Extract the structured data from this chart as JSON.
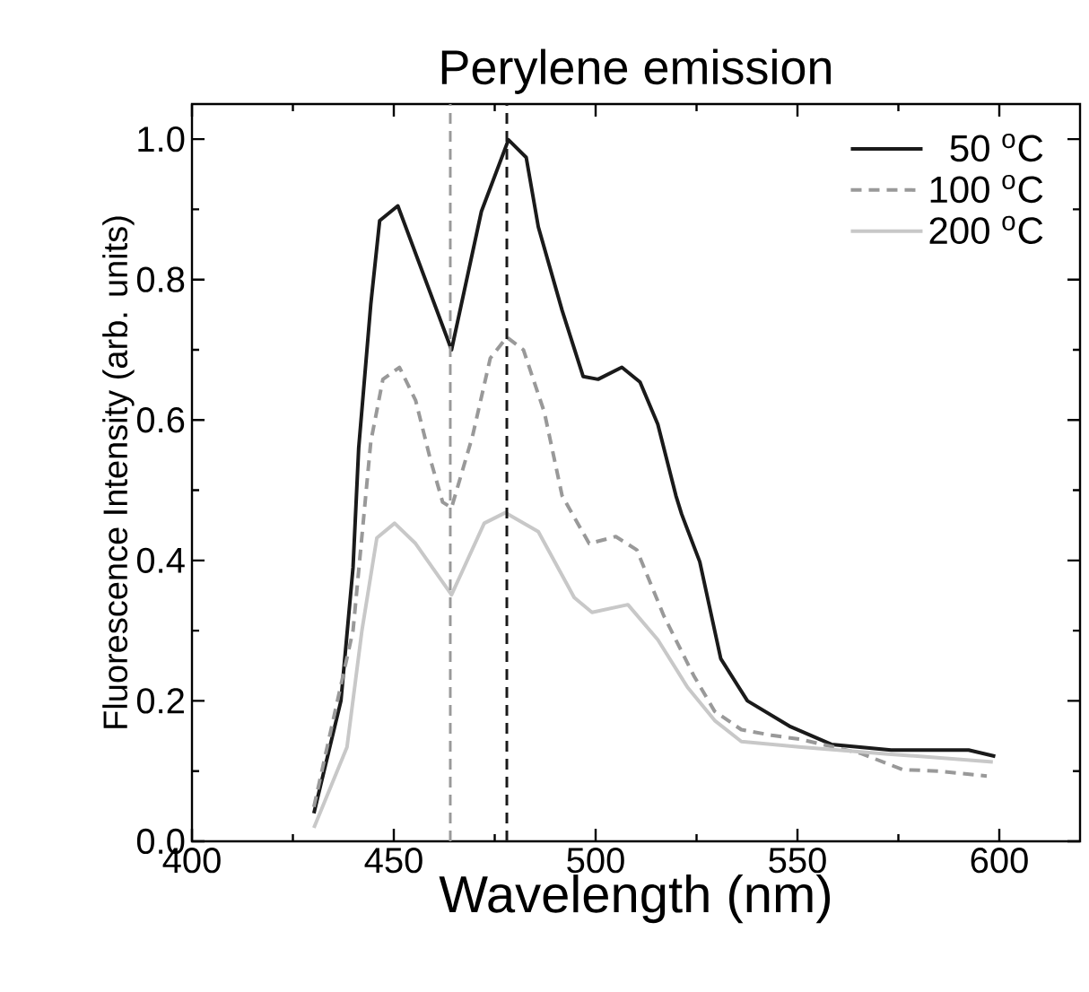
{
  "chart_data": {
    "type": "line",
    "title": "Perylene emission",
    "xlabel": "Wavelength (nm)",
    "ylabel": "Fluorescence Intensity (arb. units)",
    "xlim": [
      400,
      620
    ],
    "ylim": [
      0,
      1.05
    ],
    "xticks": [
      400,
      {
        "value": 425,
        "label": null
      },
      450,
      {
        "value": 475,
        "label": null
      },
      500,
      {
        "value": 525,
        "label": null
      },
      550,
      {
        "value": 575,
        "label": null
      },
      600
    ],
    "yticks": [
      {
        "value": 0,
        "label": "0.0"
      },
      {
        "value": 0.1,
        "label": null
      },
      {
        "value": 0.2,
        "label": "0.2"
      },
      {
        "value": 0.3,
        "label": null
      },
      {
        "value": 0.4,
        "label": "0.4"
      },
      {
        "value": 0.5,
        "label": null
      },
      {
        "value": 0.6,
        "label": "0.6"
      },
      {
        "value": 0.7,
        "label": null
      },
      {
        "value": 0.8,
        "label": "0.8"
      },
      {
        "value": 0.9,
        "label": null
      },
      {
        "value": 1.0,
        "label": "1.0"
      }
    ],
    "legend": "top right",
    "grid": false,
    "ref_lines": [
      {
        "axis": "x",
        "value": 464,
        "color": "#999999",
        "line_style": "dashed"
      },
      {
        "axis": "x",
        "value": 478,
        "color": "#1a1a1a",
        "line_style": "dashed"
      }
    ],
    "series": [
      {
        "name": "50 $^{o}$C",
        "color": "#1a1a1a",
        "line_style": "solid",
        "x": [
          430.2,
          436.9,
          439.9,
          441.3,
          444.3,
          446.5,
          451,
          464.3,
          471.7,
          478.4,
          482.8,
          485.8,
          491.7,
          496.9,
          500.6,
          506.5,
          511,
          515.4,
          519.9,
          521.3,
          525.8,
          531,
          537.6,
          548,
          558.4,
          573.2,
          592.4,
          599
        ],
        "values": [
          0.04,
          0.2,
          0.39,
          0.56,
          0.765,
          0.884,
          0.905,
          0.7,
          0.897,
          0.999,
          0.974,
          0.875,
          0.756,
          0.662,
          0.658,
          0.675,
          0.654,
          0.594,
          0.492,
          0.466,
          0.398,
          0.26,
          0.2,
          0.164,
          0.138,
          0.13,
          0.13,
          0.121
        ]
      },
      {
        "name": "100 $^{o}$C",
        "color": "#999999",
        "line_style": "dashed",
        "x": [
          430.2,
          439.9,
          444.3,
          447.3,
          451.4,
          455.4,
          459.1,
          462.1,
          464.3,
          469.5,
          473.9,
          478,
          482.1,
          487.3,
          491.7,
          498.4,
          505,
          510.2,
          516.9,
          524.3,
          529.5,
          536.1,
          543.6,
          551,
          565.8,
          576.1,
          585,
          596.9
        ],
        "values": [
          0.049,
          0.3,
          0.569,
          0.658,
          0.675,
          0.628,
          0.543,
          0.483,
          0.475,
          0.577,
          0.688,
          0.718,
          0.7,
          0.611,
          0.492,
          0.424,
          0.434,
          0.415,
          0.321,
          0.236,
          0.185,
          0.159,
          0.151,
          0.145,
          0.125,
          0.102,
          0.1,
          0.093
        ]
      },
      {
        "name": "200 $^{o}$C",
        "color": "#c8c8c8",
        "line_style": "solid",
        "x": [
          430.2,
          438.4,
          442.1,
          445.8,
          450.2,
          455.4,
          464.3,
          472.4,
          477.6,
          485.8,
          494.7,
          499.1,
          508,
          515.4,
          522.8,
          529.5,
          536.1,
          551,
          573.2,
          598.4
        ],
        "values": [
          0.019,
          0.134,
          0.3,
          0.432,
          0.453,
          0.424,
          0.351,
          0.453,
          0.468,
          0.441,
          0.347,
          0.326,
          0.337,
          0.287,
          0.219,
          0.172,
          0.142,
          0.134,
          0.124,
          0.113
        ]
      }
    ]
  }
}
